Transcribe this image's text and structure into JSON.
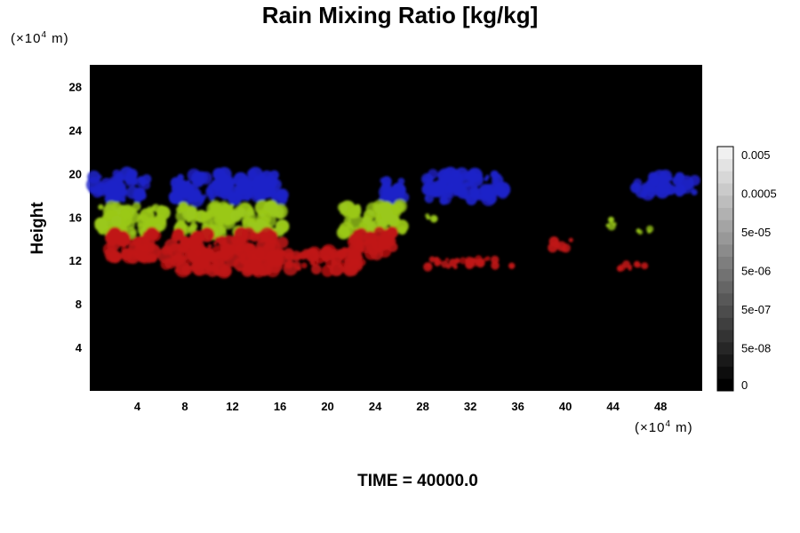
{
  "chart_data": {
    "type": "scatter",
    "title": "Rain Mixing Ratio [kg/kg]",
    "ylabel": "Height",
    "xlabel": "",
    "x_unit": {
      "pre": "(×10",
      "exp": "4",
      "post": " m)"
    },
    "y_unit": {
      "pre": "(×10",
      "exp": "4",
      "post": " m)"
    },
    "footer": "TIME = 40000.0",
    "xlim": [
      0,
      51.5
    ],
    "ylim": [
      0,
      30
    ],
    "x_ticks": [
      "4",
      "8",
      "12",
      "16",
      "20",
      "24",
      "28",
      "32",
      "36",
      "40",
      "44",
      "48"
    ],
    "y_ticks": [
      "4",
      "8",
      "12",
      "16",
      "20",
      "24",
      "28"
    ],
    "background": "#000000",
    "grid": false,
    "colorbar": {
      "labels": [
        "0.005",
        "0.0005",
        "5e-05",
        "5e-06",
        "5e-07",
        "5e-08",
        "0"
      ],
      "levels": 20,
      "low_color": "#000000",
      "high_color": "#f0f0f0"
    },
    "series": [
      {
        "color": "#1e22c8",
        "blobs": [
          {
            "x": [
              0.2,
              5.0
            ],
            "y": [
              17.5,
              20.0
            ]
          },
          {
            "x": [
              7.0,
              16.3
            ],
            "y": [
              17.5,
              20.0
            ]
          },
          {
            "x": [
              24.5,
              26.5
            ],
            "y": [
              17.6,
              19.5
            ]
          },
          {
            "x": [
              28.0,
              35.0
            ],
            "y": [
              17.5,
              20.0
            ]
          },
          {
            "x": [
              45.8,
              47.0
            ],
            "y": [
              18.0,
              19.5
            ]
          },
          {
            "x": [
              47.0,
              51.0
            ],
            "y": [
              18.2,
              19.8
            ]
          }
        ]
      },
      {
        "color": "#9ac81a",
        "blobs": [
          {
            "x": [
              0.8,
              6.3
            ],
            "y": [
              14.5,
              17.0
            ]
          },
          {
            "x": [
              7.5,
              16.5
            ],
            "y": [
              14.5,
              17.0
            ]
          },
          {
            "x": [
              21.2,
              26.3
            ],
            "y": [
              14.5,
              17.0
            ]
          },
          {
            "x": [
              28.2,
              29.0
            ],
            "y": [
              15.5,
              16.3
            ]
          },
          {
            "x": [
              43.5,
              44.4
            ],
            "y": [
              15.0,
              15.8
            ]
          },
          {
            "x": [
              46.0,
              47.2
            ],
            "y": [
              14.5,
              15.1
            ]
          }
        ]
      },
      {
        "color": "#c01414",
        "blobs": [
          {
            "x": [
              1.5,
              5.5
            ],
            "y": [
              12.0,
              14.5
            ]
          },
          {
            "x": [
              6.3,
              16.3
            ],
            "y": [
              11.0,
              14.5
            ]
          },
          {
            "x": [
              16.5,
              23.0
            ],
            "y": [
              11.0,
              13.0
            ]
          },
          {
            "x": [
              22.0,
              25.5
            ],
            "y": [
              12.5,
              14.8
            ]
          },
          {
            "x": [
              28.0,
              35.5
            ],
            "y": [
              11.4,
              12.2
            ]
          },
          {
            "x": [
              38.8,
              40.8
            ],
            "y": [
              13.0,
              14.0
            ]
          },
          {
            "x": [
              44.5,
              47.5
            ],
            "y": [
              11.2,
              11.8
            ]
          }
        ]
      }
    ]
  }
}
